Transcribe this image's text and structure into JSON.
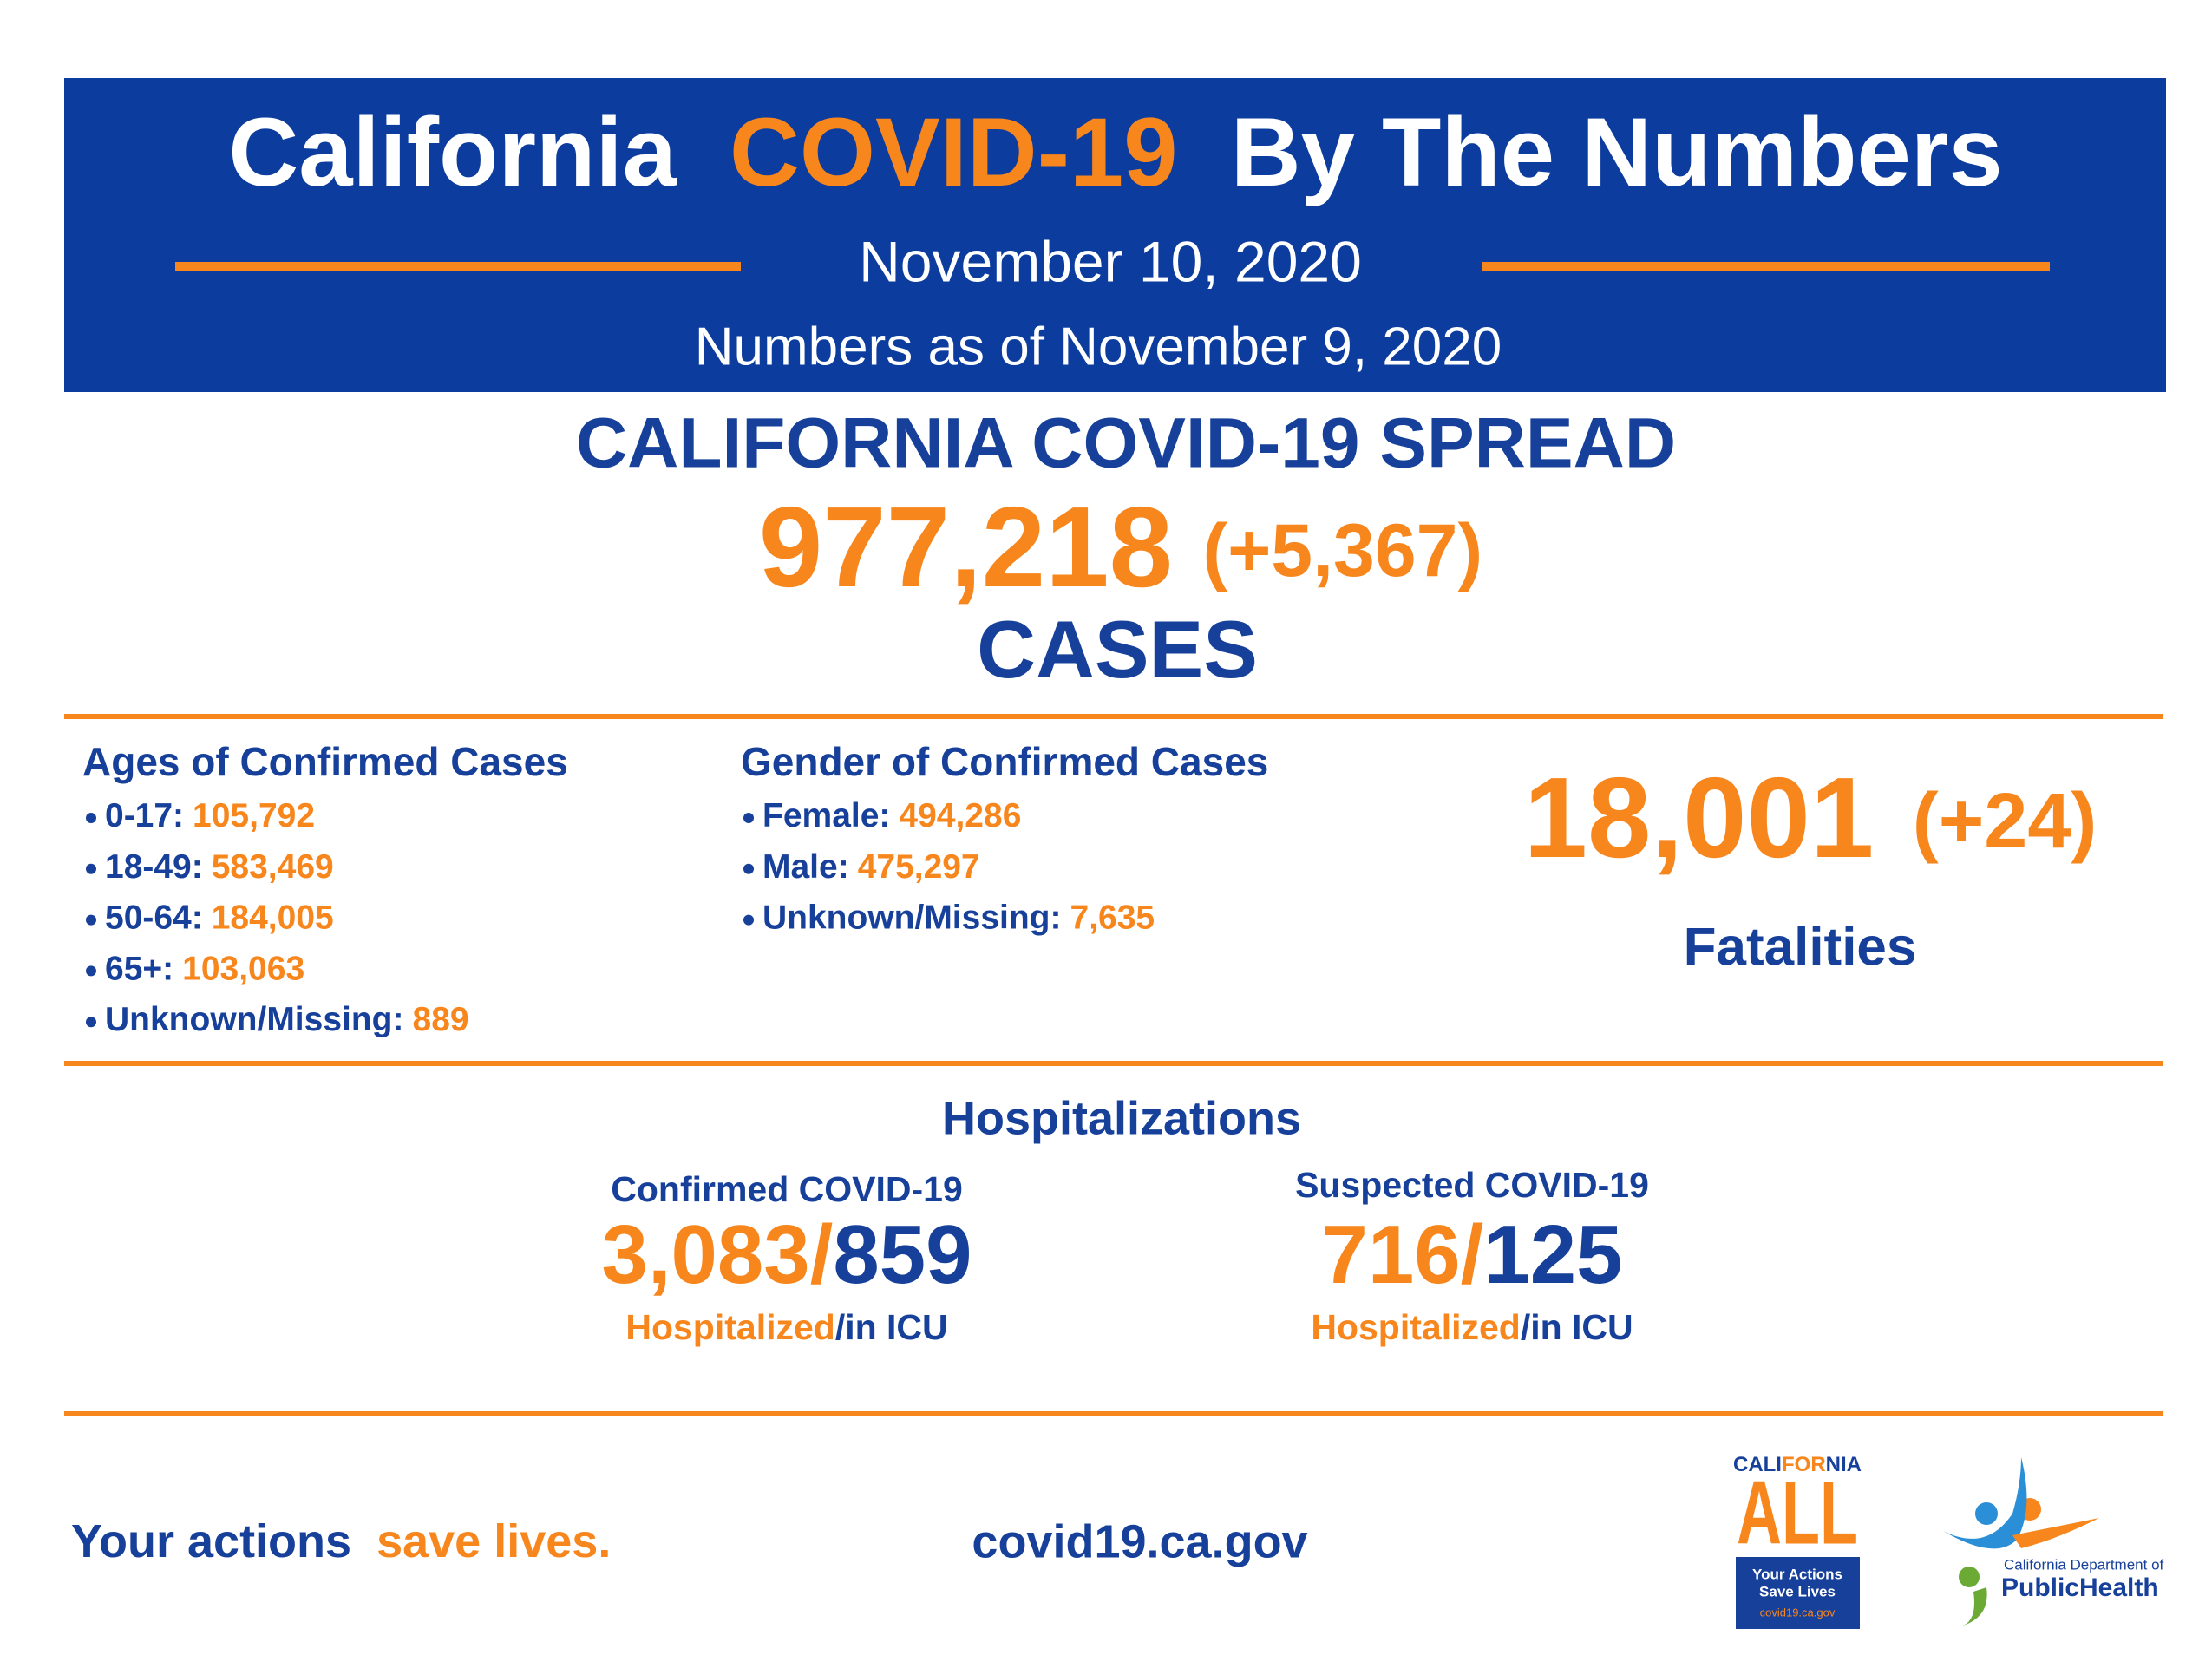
{
  "header": {
    "title": [
      "California",
      "COVID-19",
      "By The Numbers"
    ],
    "date": "November 10, 2020",
    "as_of": "Numbers as of November 9, 2020"
  },
  "spread": {
    "heading": "CALIFORNIA COVID-19 SPREAD",
    "cases": "977,218",
    "change": "(+5,367)",
    "unit": "CASES"
  },
  "ages": {
    "heading": "Ages of Confirmed Cases",
    "items": [
      {
        "label": "0-17:",
        "value": "105,792"
      },
      {
        "label": "18-49:",
        "value": "583,469"
      },
      {
        "label": "50-64:",
        "value": "184,005"
      },
      {
        "label": "65+:",
        "value": "103,063"
      },
      {
        "label": "Unknown/Missing:",
        "value": "889"
      }
    ]
  },
  "gender": {
    "heading": "Gender of Confirmed Cases",
    "items": [
      {
        "label": "Female:",
        "value": "494,286"
      },
      {
        "label": "Male:",
        "value": "475,297"
      },
      {
        "label": "Unknown/Missing:",
        "value": "7,635"
      }
    ]
  },
  "fatalities": {
    "total": "18,001",
    "change": "(+24)",
    "label": "Fatalities"
  },
  "hospitalizations": {
    "heading": "Hospitalizations",
    "groups": [
      {
        "title": "Confirmed COVID-19",
        "hospitalized": "3,083",
        "separator": "/",
        "icu": "859",
        "note_hospitalized": "Hospitalized",
        "note_icu": "/in ICU"
      },
      {
        "title": "Suspected COVID-19",
        "hospitalized": "716",
        "separator": "/",
        "icu": "125",
        "note_hospitalized": "Hospitalized",
        "note_icu": "/in ICU"
      }
    ]
  },
  "footer": {
    "slogan": [
      "Your actions",
      "save lives."
    ],
    "url": "covid19.ca.gov"
  },
  "logos": {
    "california_all": {
      "name": [
        "CALI",
        "FOR",
        "NIA"
      ],
      "word": "ALL",
      "tagline": [
        "Your Actions",
        "Save Lives"
      ],
      "url": "covid19.ca.gov"
    },
    "cdph": {
      "line1": "California Department of",
      "line2": "PublicHealth"
    }
  }
}
